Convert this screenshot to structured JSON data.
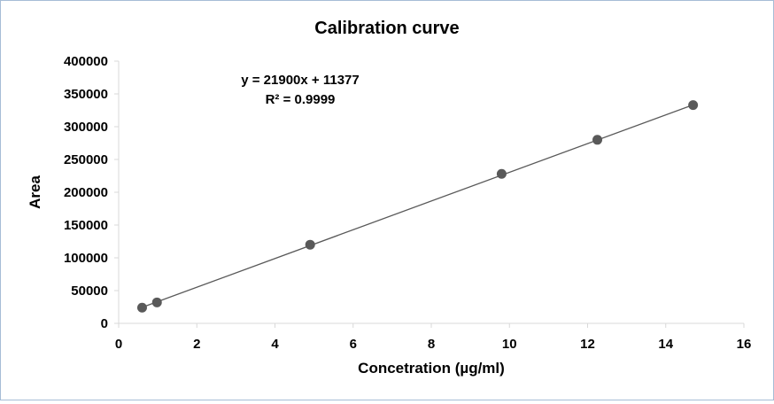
{
  "chart_data": {
    "type": "scatter",
    "title": "Calibration curve",
    "xlabel": "Concetration (µg/ml)",
    "ylabel": "Area",
    "xlim": [
      0,
      16
    ],
    "ylim": [
      0,
      400000
    ],
    "xticks": [
      "0",
      "2",
      "4",
      "6",
      "8",
      "10",
      "12",
      "14",
      "16"
    ],
    "yticks": [
      "0",
      "50000",
      "100000",
      "150000",
      "200000",
      "250000",
      "300000",
      "350000",
      "400000"
    ],
    "x": [
      0.6,
      0.98,
      4.9,
      9.8,
      12.25,
      14.7
    ],
    "y": [
      24000,
      32000,
      120000,
      228000,
      280000,
      333000
    ],
    "trendline": {
      "slope": 21900,
      "intercept": 11377,
      "equation": "y = 21900x + 11377",
      "r_squared": "R² = 0.9999"
    },
    "grid": false,
    "legend": "none",
    "marker_color": "#595959",
    "line_color": "#595959"
  }
}
